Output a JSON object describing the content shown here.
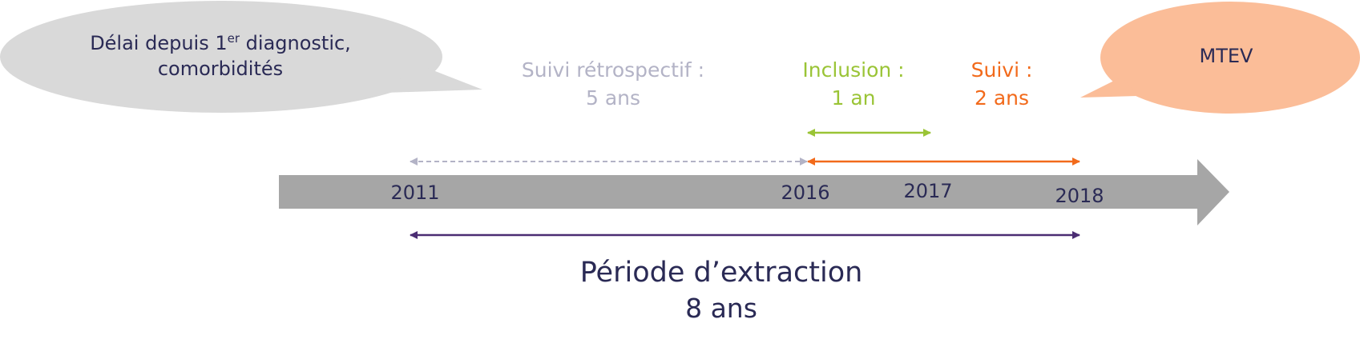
{
  "bubbles": {
    "left": {
      "line1_pre": "Délai depuis 1",
      "line1_sup": "er",
      "line1_post": " diagnostic,",
      "line2": "comorbidités"
    },
    "right": {
      "text": "MTEV"
    }
  },
  "phases": {
    "retro": {
      "label": "Suivi rétrospectif :",
      "duration": "5 ans"
    },
    "inclusion": {
      "label": "Inclusion :",
      "duration": "1 an"
    },
    "suivi": {
      "label": "Suivi :",
      "duration": "2 ans"
    }
  },
  "years": [
    "2011",
    "2016",
    "2017",
    "2018"
  ],
  "extraction": {
    "label": "Période d’extraction",
    "duration": "8 ans"
  },
  "colors": {
    "bubble_left": "#d9d9d9",
    "bubble_right": "#fbbd98",
    "timeline_bar": "#a6a6a6",
    "retro": "#b3b3c6",
    "inclusion": "#9ac436",
    "suivi": "#f26a1b",
    "extraction": "#4b2d73",
    "text": "#2a2a55"
  }
}
